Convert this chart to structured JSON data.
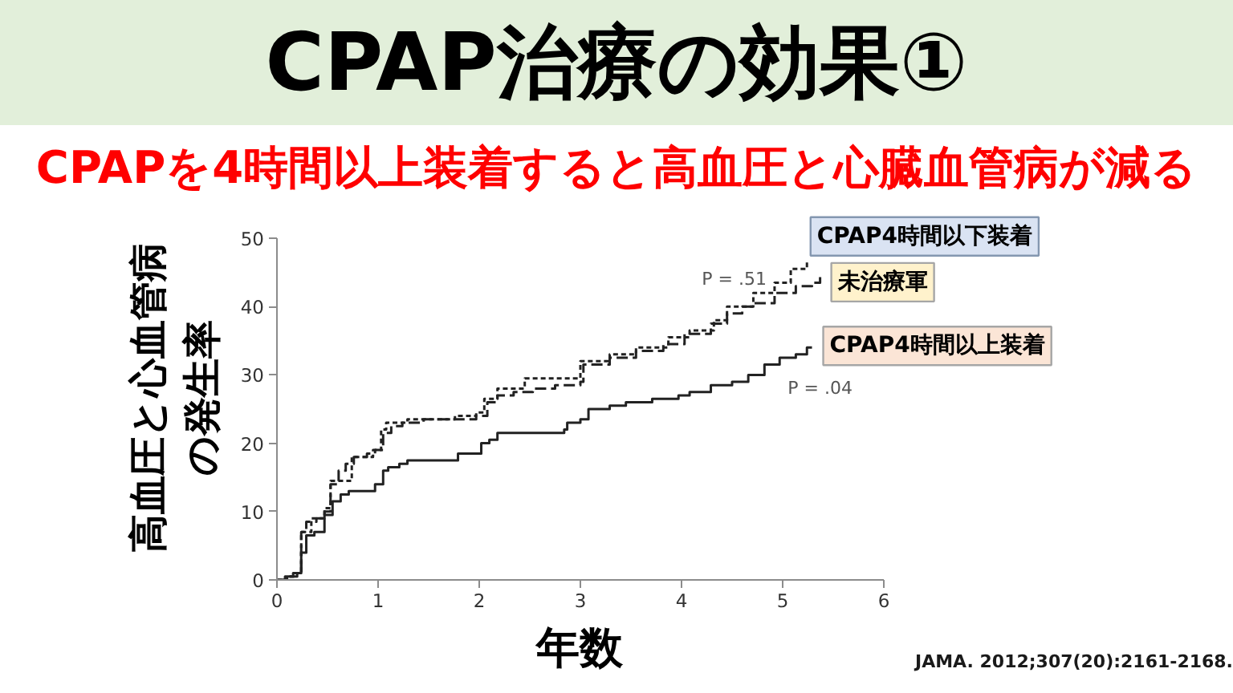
{
  "chart_data": {
    "type": "step",
    "title": "CPAP治療の効果①",
    "subtitle": "CPAPを4時間以上装着すると高血圧と心臓血管病が減る",
    "xlabel": "年数",
    "ylabel": "高血圧と心血管病の発生率",
    "xlim": [
      0,
      6
    ],
    "ylim": [
      0,
      50
    ],
    "xticks": [
      0,
      1,
      2,
      3,
      4,
      5,
      6
    ],
    "yticks": [
      0,
      10,
      20,
      30,
      40,
      50
    ],
    "series": [
      {
        "name": "CPAP4時間以下装着",
        "color": "#222222",
        "line_style": "dotted",
        "x": [
          0,
          0.1,
          0.18,
          0.24,
          0.34,
          0.47,
          0.53,
          0.74,
          0.95,
          1.03,
          1.08,
          1.29,
          1.76,
          1.97,
          2.05,
          2.18,
          2.45,
          3.0,
          3.29,
          3.55,
          3.87,
          4.08,
          4.32,
          4.45,
          4.71,
          4.92,
          5.08,
          5.24,
          5.26
        ],
        "values": [
          0,
          0.5,
          1,
          7,
          9,
          10.5,
          14.5,
          18,
          19,
          22,
          23,
          23.5,
          24,
          24.5,
          26.5,
          28,
          29.5,
          32,
          33,
          34,
          35.5,
          36.5,
          38,
          40,
          42,
          43.5,
          45.5,
          46.5,
          46.5
        ]
      },
      {
        "name": "未治療軍",
        "color": "#222222",
        "line_style": "dashed",
        "x": [
          0,
          0.1,
          0.2,
          0.24,
          0.29,
          0.39,
          0.47,
          0.53,
          0.61,
          0.68,
          0.76,
          0.89,
          0.97,
          1.05,
          1.13,
          1.24,
          1.45,
          1.97,
          2.08,
          2.18,
          2.34,
          2.53,
          2.75,
          3.0,
          3.03,
          3.29,
          3.55,
          3.82,
          4.03,
          4.29,
          4.45,
          4.6,
          4.71,
          4.92,
          5.13,
          5.29,
          5.37
        ],
        "values": [
          0,
          0.5,
          1,
          7,
          8.5,
          9,
          10,
          14,
          16,
          17,
          18,
          18.5,
          19,
          21.5,
          22.5,
          23,
          23.5,
          24,
          26,
          27,
          27.5,
          28,
          28.5,
          29,
          31.5,
          32.5,
          33.5,
          34.5,
          36,
          37.5,
          39,
          40,
          40.5,
          42,
          43,
          43.5,
          44.5
        ]
      },
      {
        "name": "CPAP4時間以上装着",
        "color": "#222222",
        "line_style": "solid",
        "x": [
          0,
          0.08,
          0.16,
          0.24,
          0.29,
          0.37,
          0.47,
          0.55,
          0.63,
          0.71,
          0.97,
          1.05,
          1.1,
          1.21,
          1.29,
          1.79,
          2.02,
          2.1,
          2.18,
          2.84,
          2.87,
          3.0,
          3.08,
          3.29,
          3.45,
          3.71,
          3.97,
          4.08,
          4.29,
          4.5,
          4.66,
          4.82,
          4.97,
          5.13,
          5.24,
          5.29
        ],
        "values": [
          0,
          0.5,
          1,
          4,
          6.5,
          7,
          9.5,
          11.5,
          12.5,
          13,
          14,
          16,
          16.5,
          17,
          17.5,
          18.5,
          20,
          20.5,
          21.5,
          22,
          23,
          23.5,
          25,
          25.5,
          26,
          26.5,
          27,
          27.5,
          28.5,
          29,
          30,
          31.5,
          32.5,
          33,
          34,
          34
        ]
      }
    ],
    "annotations": [
      "P = .51",
      "P = .04",
      "JAMA. 2012;307(20):2161-2168."
    ]
  }
}
